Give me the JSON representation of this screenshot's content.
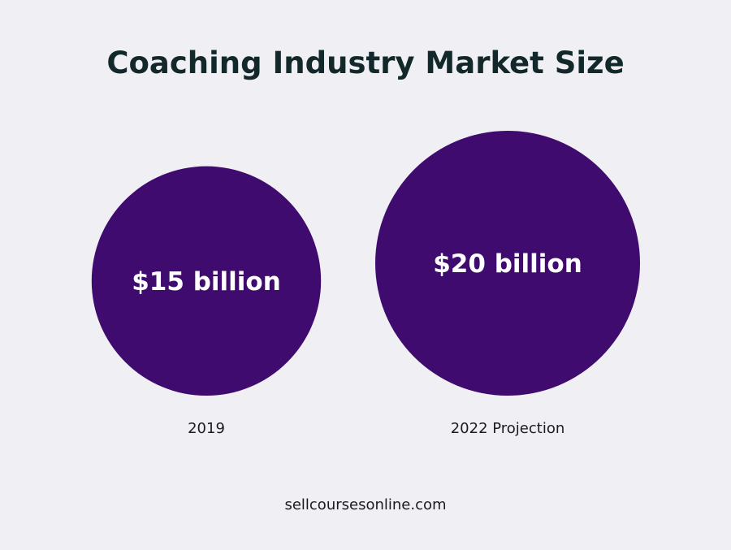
{
  "chart_data": {
    "type": "bubble",
    "title": "Coaching Industry Market Size",
    "categories": [
      "2019",
      "2022 Projection"
    ],
    "values": [
      15,
      20
    ],
    "value_labels": [
      "$15 billion",
      "$20 billion"
    ],
    "unit": "billion USD"
  },
  "footer": {
    "source": "sellcoursesonline.com"
  },
  "colors": {
    "background": "#f0f0f4",
    "bubble": "#3f0b6e",
    "title": "#13282b",
    "bubble_text": "#ffffff",
    "label_text": "#1c1c1c"
  }
}
